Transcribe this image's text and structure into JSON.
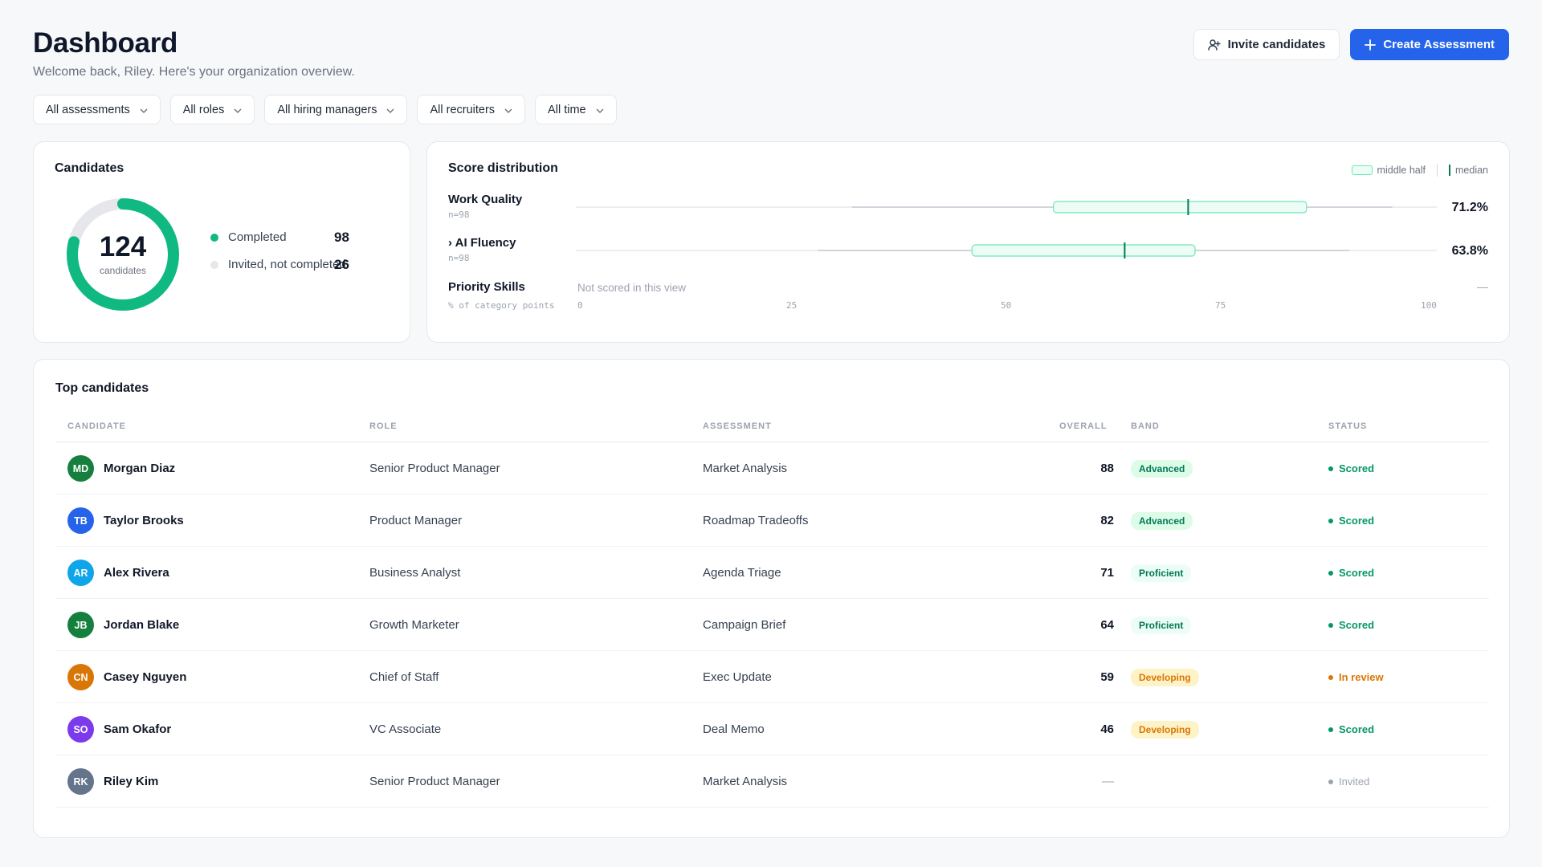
{
  "header": {
    "title": "Dashboard",
    "subtitle": "Welcome back, Riley. Here's your organization overview.",
    "invite_label": "Invite candidates",
    "create_label": "Create Assessment"
  },
  "filters": [
    "All assessments",
    "All roles",
    "All hiring managers",
    "All recruiters",
    "All time"
  ],
  "candidates": {
    "title": "Candidates",
    "total": "124",
    "total_label": "candidates",
    "completed_label": "Completed",
    "completed": "98",
    "invited_label": "Invited, not completed",
    "invited": "26",
    "completed_fraction": 0.79,
    "colors": {
      "completed": "#10b981",
      "invited": "#e5e7eb"
    }
  },
  "score_distribution": {
    "title": "Score distribution",
    "legend_box": "middle half",
    "legend_median": "median",
    "rows": [
      {
        "label": "Work Quality",
        "n": "n=98",
        "pct": "71.2%",
        "min": 32,
        "q1": 55.5,
        "median": 71.2,
        "q3": 85,
        "max": 95
      },
      {
        "label": "› AI Fluency",
        "n": "n=98",
        "pct": "63.8%",
        "min": 28,
        "q1": 46,
        "median": 63.8,
        "q3": 72,
        "max": 90
      }
    ],
    "priority": {
      "label": "Priority Skills",
      "note": "Not scored in this view",
      "value": "—"
    },
    "axis_title": "% of category points",
    "ticks": [
      "0",
      "25",
      "50",
      "75",
      "100"
    ]
  },
  "table": {
    "title": "Top candidates",
    "columns": {
      "candidate": "CANDIDATE",
      "role": "ROLE",
      "assessment": "ASSESSMENT",
      "overall": "OVERALL",
      "band": "BAND",
      "status": "STATUS"
    },
    "rows": [
      {
        "initials": "MD",
        "name": "Morgan Diaz",
        "avatar_color": "#15803d",
        "role": "Senior Product Manager",
        "assessment": "Market Analysis",
        "overall": "88",
        "band": "Advanced",
        "band_kind": "advanced",
        "status": "Scored",
        "status_kind": "scored"
      },
      {
        "initials": "TB",
        "name": "Taylor Brooks",
        "avatar_color": "#2563eb",
        "role": "Product Manager",
        "assessment": "Roadmap Tradeoffs",
        "overall": "82",
        "band": "Advanced",
        "band_kind": "advanced",
        "status": "Scored",
        "status_kind": "scored"
      },
      {
        "initials": "AR",
        "name": "Alex Rivera",
        "avatar_color": "#0ea5e9",
        "role": "Business Analyst",
        "assessment": "Agenda Triage",
        "overall": "71",
        "band": "Proficient",
        "band_kind": "proficient",
        "status": "Scored",
        "status_kind": "scored"
      },
      {
        "initials": "JB",
        "name": "Jordan Blake",
        "avatar_color": "#15803d",
        "role": "Growth Marketer",
        "assessment": "Campaign Brief",
        "overall": "64",
        "band": "Proficient",
        "band_kind": "proficient",
        "status": "Scored",
        "status_kind": "scored"
      },
      {
        "initials": "CN",
        "name": "Casey Nguyen",
        "avatar_color": "#d97706",
        "role": "Chief of Staff",
        "assessment": "Exec Update",
        "overall": "59",
        "band": "Developing",
        "band_kind": "developing",
        "status": "In review",
        "status_kind": "review"
      },
      {
        "initials": "SO",
        "name": "Sam Okafor",
        "avatar_color": "#7c3aed",
        "role": "VC Associate",
        "assessment": "Deal Memo",
        "overall": "46",
        "band": "Developing",
        "band_kind": "developing",
        "status": "Scored",
        "status_kind": "scored"
      },
      {
        "initials": "RK",
        "name": "Riley Kim",
        "avatar_color": "#64748b",
        "role": "Senior Product Manager",
        "assessment": "Market Analysis",
        "overall": "—",
        "band": "",
        "band_kind": "none",
        "status": "Invited",
        "status_kind": "invited"
      }
    ]
  },
  "colors": {
    "band": {
      "advanced": {
        "bg": "#dcfce7",
        "fg": "#047857"
      },
      "proficient": {
        "bg": "#ecfdf5",
        "fg": "#047857"
      },
      "developing": {
        "bg": "#fef3c7",
        "fg": "#d97706"
      }
    },
    "status": {
      "scored": "#059669",
      "review": "#d97706",
      "invited": "#9ca3af"
    }
  }
}
